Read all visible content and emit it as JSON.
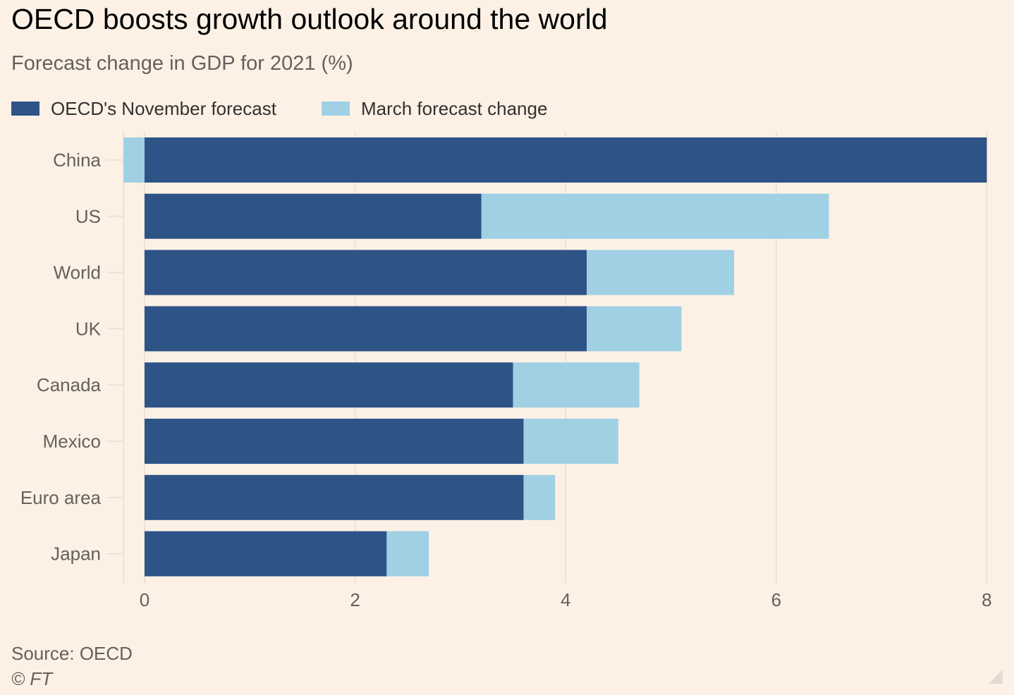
{
  "title": "OECD boosts growth outlook around the world",
  "subtitle": "Forecast change in GDP for 2021 (%)",
  "source": "Source: OECD",
  "credit": "© FT",
  "colors": {
    "background": "#FDF1E6",
    "november": "#2E5386",
    "march_change": "#A0D0E4",
    "grid": "#E6DED5",
    "tick_text": "#66605C"
  },
  "chart_data": {
    "type": "bar",
    "orientation": "horizontal",
    "stacked": true,
    "categories": [
      "China",
      "US",
      "World",
      "UK",
      "Canada",
      "Mexico",
      "Euro area",
      "Japan"
    ],
    "series": [
      {
        "name": "OECD's November forecast",
        "values": [
          8.0,
          3.2,
          4.2,
          4.2,
          3.5,
          3.6,
          3.6,
          2.3
        ]
      },
      {
        "name": "March forecast change",
        "values": [
          -0.2,
          3.3,
          1.4,
          0.9,
          1.2,
          0.9,
          0.3,
          0.4
        ]
      }
    ],
    "xlim": [
      -0.2,
      8
    ],
    "xticks": [
      0,
      2,
      4,
      6,
      8
    ],
    "xlabel": "",
    "ylabel": "",
    "grid": true,
    "legend": "top-left"
  }
}
